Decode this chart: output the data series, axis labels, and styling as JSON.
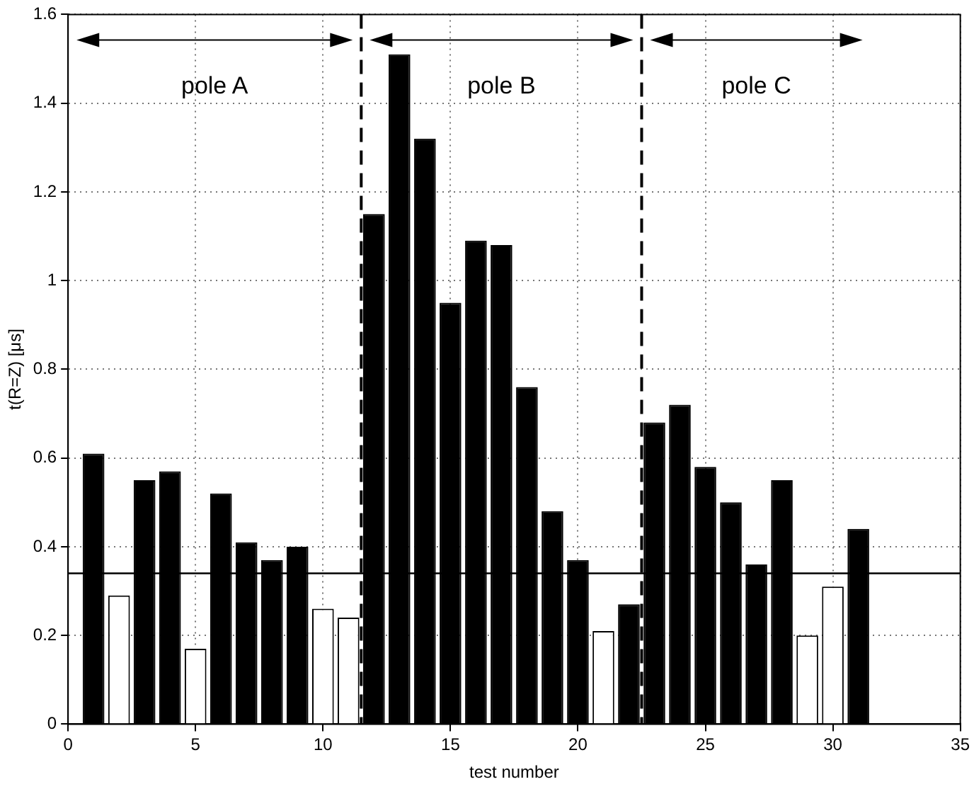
{
  "chart_data": {
    "type": "bar",
    "xlabel": "test number",
    "ylabel": "t(R=Z) [μs]",
    "x": [
      1,
      2,
      3,
      4,
      5,
      6,
      7,
      8,
      9,
      10,
      11,
      12,
      13,
      14,
      15,
      16,
      17,
      18,
      19,
      20,
      21,
      22,
      23,
      24,
      25,
      26,
      27,
      28,
      29,
      30,
      31
    ],
    "values": [
      0.61,
      0.29,
      0.55,
      0.57,
      0.17,
      0.52,
      0.41,
      0.37,
      0.4,
      0.26,
      0.24,
      1.15,
      1.51,
      1.32,
      0.95,
      1.09,
      1.08,
      0.76,
      0.48,
      0.37,
      0.21,
      0.27,
      0.68,
      0.72,
      0.58,
      0.5,
      0.36,
      0.55,
      0.2,
      0.31,
      0.44
    ],
    "colors": [
      "#000000",
      "#ffffff",
      "#000000",
      "#000000",
      "#ffffff",
      "#000000",
      "#000000",
      "#000000",
      "#000000",
      "#ffffff",
      "#ffffff",
      "#000000",
      "#000000",
      "#000000",
      "#000000",
      "#000000",
      "#000000",
      "#000000",
      "#000000",
      "#000000",
      "#ffffff",
      "#000000",
      "#000000",
      "#000000",
      "#000000",
      "#000000",
      "#000000",
      "#000000",
      "#ffffff",
      "#ffffff",
      "#000000"
    ],
    "xlim": [
      0,
      35
    ],
    "xticks": [
      0,
      5,
      10,
      15,
      20,
      25,
      30,
      35
    ],
    "ylim": [
      0,
      1.6
    ],
    "yticks": [
      0,
      0.2,
      0.4,
      0.6,
      0.8,
      1,
      1.2,
      1.4,
      1.6
    ],
    "grid": true,
    "legend": false,
    "ref_lines": [
      {
        "axis": "y",
        "value": 0.34,
        "color": "#000000",
        "line_style": "solid"
      },
      {
        "axis": "x",
        "value": 11.5,
        "color": "#000000",
        "line_style": "dashed"
      },
      {
        "axis": "x",
        "value": 22.5,
        "color": "#000000",
        "line_style": "dashed"
      }
    ],
    "annotations": [
      "pole A",
      "pole B",
      "pole C"
    ]
  }
}
